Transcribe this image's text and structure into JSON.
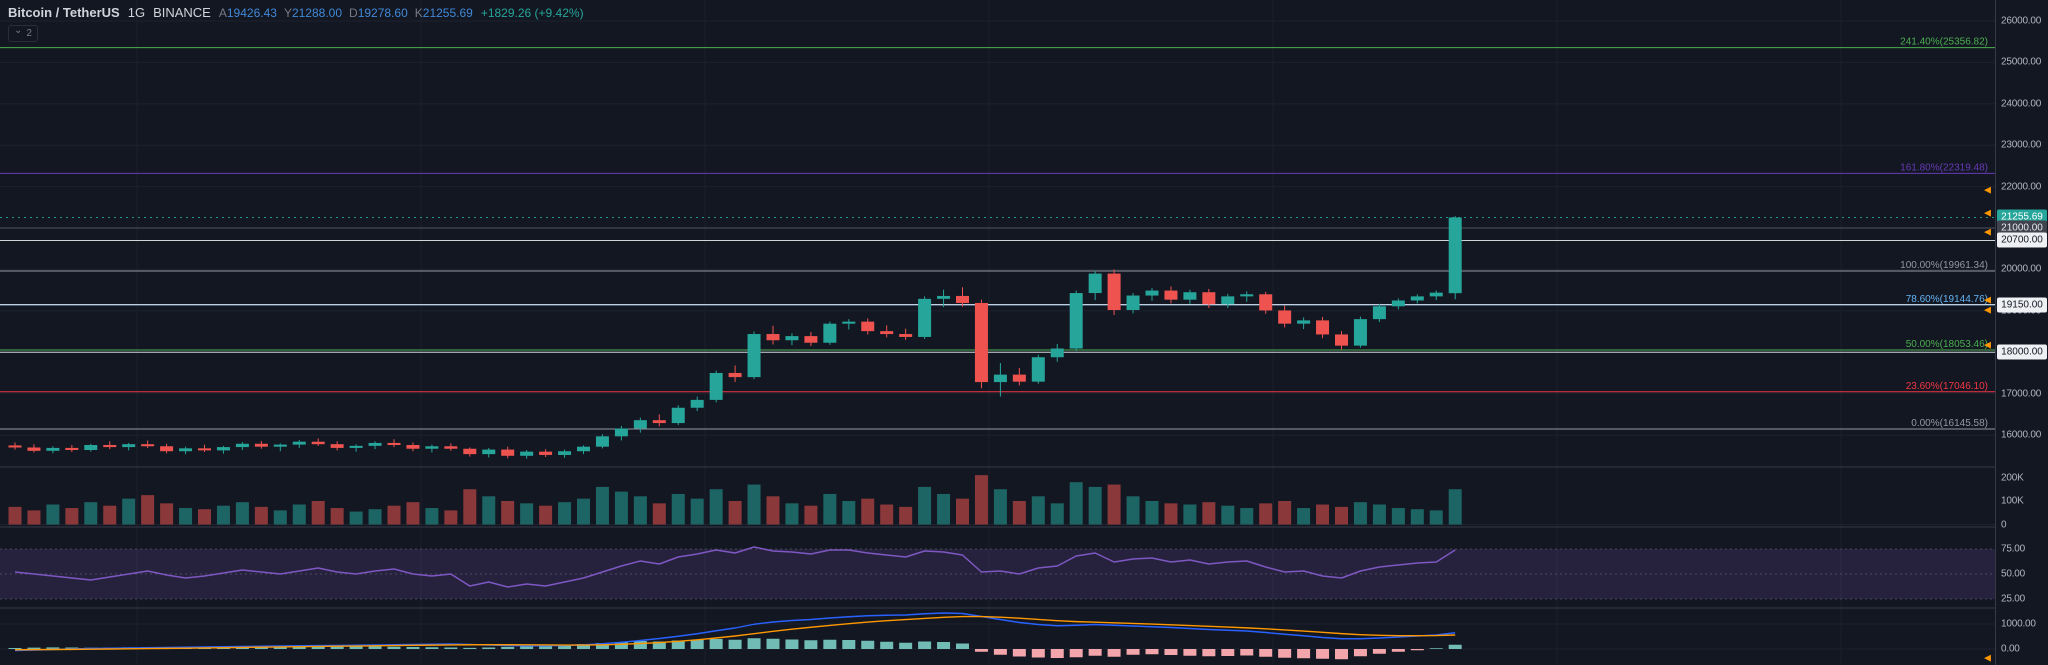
{
  "header": {
    "symbol": "Bitcoin / TetherUS",
    "interval": "1G",
    "exchange": "BINANCE",
    "open_label": "A",
    "open": "19426.43",
    "high_label": "Y",
    "high": "21288.00",
    "low_label": "D",
    "low": "19278.60",
    "close_label": "K",
    "close": "21255.69",
    "change": "+1829.26 (+9.42%)"
  },
  "legend": {
    "hidden_count": "2"
  },
  "colors": {
    "background": "#131722",
    "up": "#26a69a",
    "down": "#ef5350",
    "vol_up": "rgba(38,166,154,0.55)",
    "vol_down": "rgba(239,83,80,0.55)",
    "grid": "#1e222d",
    "vgrid": "#1a1f2b",
    "separator": "#363a45",
    "axis_text": "#b2b5be",
    "rsi_line": "#7e57c2",
    "rsi_band": "rgba(126,87,194,0.18)",
    "rsi_level": "#787b86",
    "macd_line": "#2962ff",
    "signal_line": "#ff9800",
    "hist_pos": "#71bdb6",
    "hist_neg": "#f2a5aa",
    "alert": "#ff9800",
    "white_line": "rgba(244,245,249,0.85)",
    "dark_line": "#50535e",
    "current": "#26a69a"
  },
  "chart_data": {
    "type": "candlestick",
    "title": "Bitcoin / TetherUS 1G BINANCE",
    "price_axis_ticks": [
      "26000.00",
      "25000.00",
      "24000.00",
      "23000.00",
      "22000.00",
      "21000.00",
      "20000.00",
      "19000.00",
      "18000.00",
      "17000.00",
      "16000.00"
    ],
    "volume_axis_ticks": [
      "200K",
      "100K",
      "0"
    ],
    "rsi_axis_ticks": [
      "75.00",
      "50.00",
      "25.00"
    ],
    "macd_axis_ticks": [
      "1000.00",
      "0.00"
    ],
    "fib_levels": [
      {
        "label": "241.40%(25356.82)",
        "price": 25356.82,
        "color": "#4caf50"
      },
      {
        "label": "161.80%(22319.48)",
        "price": 22319.48,
        "color": "#673ab7"
      },
      {
        "label": "100.00%(19961.34)",
        "price": 19961.34,
        "color": "#9598a1"
      },
      {
        "label": "78.60%(19144.76)",
        "price": 19144.76,
        "color": "#64b5f6"
      },
      {
        "label": "50.00%(18053.46)",
        "price": 18053.46,
        "color": "#4caf50"
      },
      {
        "label": "23.60%(17046.10)",
        "price": 17046.1,
        "color": "#f23645"
      },
      {
        "label": "0.00%(16145.58)",
        "price": 16145.58,
        "color": "#9598a1"
      }
    ],
    "price_lines": [
      {
        "label": "21000.00",
        "price": 21000,
        "style": "dark"
      },
      {
        "label": "20700.00",
        "price": 20700,
        "style": "white"
      },
      {
        "label": "19150.00",
        "price": 19150,
        "style": "white"
      },
      {
        "label": "18000.00",
        "price": 18000,
        "style": "white"
      }
    ],
    "current_price": {
      "label": "21255.69",
      "price": 21255.69
    },
    "alert_prices": [
      21920,
      21360,
      20900,
      19260,
      19020,
      18175
    ],
    "macd_alert_value": -360,
    "candles": [
      [
        15750,
        15820,
        15650,
        15700
      ],
      [
        15700,
        15780,
        15580,
        15620
      ],
      [
        15620,
        15730,
        15560,
        15690
      ],
      [
        15690,
        15760,
        15590,
        15640
      ],
      [
        15640,
        15790,
        15600,
        15760
      ],
      [
        15760,
        15850,
        15660,
        15710
      ],
      [
        15710,
        15810,
        15630,
        15780
      ],
      [
        15780,
        15870,
        15690,
        15730
      ],
      [
        15730,
        15790,
        15560,
        15610
      ],
      [
        15610,
        15720,
        15540,
        15680
      ],
      [
        15680,
        15770,
        15590,
        15630
      ],
      [
        15630,
        15740,
        15550,
        15710
      ],
      [
        15710,
        15830,
        15640,
        15790
      ],
      [
        15790,
        15860,
        15670,
        15720
      ],
      [
        15720,
        15800,
        15610,
        15770
      ],
      [
        15770,
        15880,
        15690,
        15840
      ],
      [
        15840,
        15920,
        15740,
        15780
      ],
      [
        15780,
        15850,
        15630,
        15690
      ],
      [
        15690,
        15780,
        15600,
        15740
      ],
      [
        15740,
        15850,
        15660,
        15810
      ],
      [
        15810,
        15900,
        15710,
        15760
      ],
      [
        15760,
        15820,
        15610,
        15670
      ],
      [
        15670,
        15770,
        15580,
        15730
      ],
      [
        15730,
        15800,
        15620,
        15670
      ],
      [
        15670,
        15700,
        15480,
        15540
      ],
      [
        15540,
        15690,
        15460,
        15650
      ],
      [
        15650,
        15720,
        15440,
        15500
      ],
      [
        15500,
        15640,
        15430,
        15600
      ],
      [
        15600,
        15660,
        15470,
        15520
      ],
      [
        15520,
        15650,
        15450,
        15610
      ],
      [
        15610,
        15750,
        15540,
        15720
      ],
      [
        15720,
        16020,
        15680,
        15970
      ],
      [
        15970,
        16220,
        15870,
        16160
      ],
      [
        16160,
        16420,
        16060,
        16360
      ],
      [
        16360,
        16500,
        16210,
        16290
      ],
      [
        16290,
        16720,
        16240,
        16660
      ],
      [
        16660,
        16930,
        16580,
        16850
      ],
      [
        16850,
        17560,
        16790,
        17500
      ],
      [
        17500,
        17680,
        17280,
        17400
      ],
      [
        17400,
        18500,
        17350,
        18440
      ],
      [
        18440,
        18640,
        18190,
        18290
      ],
      [
        18290,
        18460,
        18170,
        18390
      ],
      [
        18390,
        18490,
        18150,
        18230
      ],
      [
        18230,
        18740,
        18180,
        18690
      ],
      [
        18690,
        18800,
        18550,
        18740
      ],
      [
        18740,
        18820,
        18430,
        18510
      ],
      [
        18510,
        18650,
        18360,
        18440
      ],
      [
        18440,
        18570,
        18300,
        18370
      ],
      [
        18370,
        19350,
        18320,
        19290
      ],
      [
        19290,
        19510,
        19090,
        19360
      ],
      [
        19360,
        19570,
        19100,
        19190
      ],
      [
        19190,
        19270,
        17130,
        17280
      ],
      [
        17280,
        17740,
        16930,
        17460
      ],
      [
        17460,
        17620,
        17200,
        17290
      ],
      [
        17290,
        17940,
        17240,
        17880
      ],
      [
        17880,
        18200,
        17770,
        18090
      ],
      [
        18090,
        19490,
        18030,
        19430
      ],
      [
        19430,
        19970,
        19260,
        19900
      ],
      [
        19900,
        20000,
        18900,
        19020
      ],
      [
        19020,
        19430,
        18940,
        19370
      ],
      [
        19370,
        19550,
        19240,
        19490
      ],
      [
        19490,
        19590,
        19180,
        19270
      ],
      [
        19270,
        19510,
        19170,
        19450
      ],
      [
        19450,
        19530,
        19070,
        19160
      ],
      [
        19160,
        19410,
        19070,
        19350
      ],
      [
        19350,
        19470,
        19220,
        19400
      ],
      [
        19400,
        19460,
        18930,
        19010
      ],
      [
        19010,
        19130,
        18600,
        18690
      ],
      [
        18690,
        18840,
        18560,
        18770
      ],
      [
        18770,
        18850,
        18340,
        18430
      ],
      [
        18430,
        18510,
        18070,
        18160
      ],
      [
        18160,
        18860,
        18110,
        18800
      ],
      [
        18800,
        19170,
        18730,
        19110
      ],
      [
        19110,
        19300,
        19040,
        19250
      ],
      [
        19250,
        19400,
        19180,
        19350
      ],
      [
        19350,
        19490,
        19260,
        19440
      ],
      [
        19426.43,
        21288.0,
        19278.6,
        21255.69
      ]
    ],
    "volumes_k": [
      75,
      60,
      85,
      70,
      95,
      80,
      110,
      125,
      90,
      70,
      65,
      80,
      95,
      75,
      60,
      85,
      100,
      70,
      55,
      65,
      80,
      95,
      70,
      60,
      150,
      120,
      100,
      90,
      80,
      95,
      110,
      160,
      140,
      120,
      90,
      130,
      110,
      150,
      100,
      170,
      120,
      90,
      80,
      130,
      100,
      110,
      85,
      75,
      160,
      130,
      110,
      210,
      150,
      100,
      120,
      90,
      180,
      160,
      170,
      120,
      100,
      90,
      85,
      95,
      80,
      70,
      90,
      100,
      70,
      85,
      75,
      95,
      85,
      70,
      65,
      60,
      150
    ],
    "rsi": [
      52,
      50,
      48,
      46,
      44,
      47,
      50,
      53,
      49,
      46,
      48,
      51,
      54,
      52,
      50,
      53,
      56,
      52,
      50,
      53,
      55,
      50,
      48,
      50,
      38,
      42,
      37,
      40,
      38,
      42,
      46,
      52,
      58,
      63,
      60,
      67,
      70,
      74,
      71,
      77,
      73,
      72,
      70,
      74,
      74,
      71,
      69,
      67,
      73,
      72,
      69,
      52,
      53,
      50,
      56,
      58,
      68,
      71,
      62,
      65,
      66,
      62,
      64,
      60,
      62,
      63,
      57,
      52,
      53,
      48,
      46,
      53,
      57,
      59,
      61,
      62,
      74
    ],
    "macd": {
      "macd": [
        -60,
        -40,
        -20,
        0,
        20,
        30,
        40,
        50,
        60,
        70,
        80,
        90,
        100,
        110,
        120,
        130,
        135,
        140,
        150,
        160,
        170,
        180,
        190,
        200,
        180,
        160,
        140,
        130,
        130,
        145,
        165,
        210,
        270,
        340,
        420,
        510,
        610,
        730,
        840,
        990,
        1080,
        1140,
        1180,
        1240,
        1290,
        1330,
        1350,
        1360,
        1410,
        1440,
        1420,
        1300,
        1180,
        1060,
        980,
        930,
        950,
        980,
        950,
        920,
        890,
        860,
        820,
        780,
        750,
        720,
        660,
        590,
        530,
        460,
        410,
        410,
        440,
        480,
        520,
        560,
        650
      ],
      "signal": [
        -30,
        -25,
        -20,
        -15,
        -8,
        0,
        8,
        16,
        25,
        34,
        44,
        54,
        64,
        74,
        84,
        94,
        103,
        111,
        119,
        128,
        137,
        146,
        155,
        164,
        170,
        172,
        170,
        166,
        161,
        158,
        159,
        168,
        188,
        218,
        258,
        308,
        368,
        440,
        520,
        614,
        706,
        792,
        870,
        944,
        1013,
        1076,
        1131,
        1177,
        1224,
        1267,
        1298,
        1298,
        1274,
        1231,
        1181,
        1131,
        1095,
        1072,
        1048,
        1022,
        996,
        969,
        939,
        907,
        876,
        845,
        808,
        764,
        717,
        666,
        615,
        574,
        547,
        534,
        531,
        537,
        560
      ],
      "hist": [
        40,
        55,
        65,
        60,
        50,
        55,
        65,
        80,
        75,
        65,
        55,
        60,
        75,
        90,
        95,
        85,
        80,
        95,
        110,
        105,
        90,
        80,
        70,
        60,
        45,
        60,
        85,
        110,
        140,
        170,
        200,
        240,
        280,
        320,
        300,
        340,
        360,
        400,
        370,
        430,
        410,
        380,
        350,
        370,
        360,
        330,
        290,
        250,
        300,
        280,
        220,
        -110,
        -230,
        -300,
        -340,
        -360,
        -330,
        -270,
        -310,
        -230,
        -210,
        -240,
        -270,
        -290,
        -280,
        -260,
        -310,
        -350,
        -370,
        -390,
        -410,
        -290,
        -190,
        -110,
        -50,
        30,
        170
      ]
    }
  }
}
